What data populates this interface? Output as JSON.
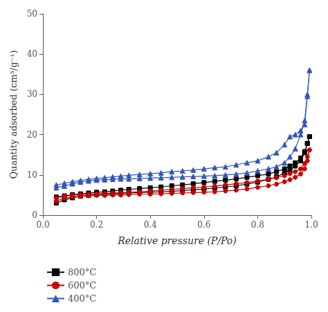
{
  "chart_data": {
    "type": "line",
    "xlabel": "Relative pressure (P/Po)",
    "ylabel": "Quantity adsorbed (cm³/g⁻¹)",
    "xlim": [
      0.0,
      1.0
    ],
    "ylim": [
      0,
      50
    ],
    "xticks": [
      {
        "value": 0.0,
        "label": "0.0"
      },
      0.2,
      0.4,
      0.6,
      0.8,
      {
        "value": 1.0,
        "label": "1.0"
      }
    ],
    "yticks": [
      0,
      10,
      20,
      30,
      40,
      50
    ],
    "grid": false,
    "legend": "lower left",
    "series": [
      {
        "name": "800°C",
        "color": "#000000",
        "marker": "square",
        "adsorption": {
          "x": [
            0.05,
            0.08,
            0.11,
            0.14,
            0.17,
            0.2,
            0.23,
            0.26,
            0.29,
            0.32,
            0.36,
            0.4,
            0.44,
            0.48,
            0.52,
            0.56,
            0.6,
            0.64,
            0.68,
            0.72,
            0.76,
            0.8,
            0.84,
            0.87,
            0.9,
            0.92,
            0.94,
            0.96,
            0.975,
            0.985,
            0.993
          ],
          "values": [
            3.0,
            3.8,
            4.3,
            4.7,
            4.9,
            5.1,
            5.2,
            5.3,
            5.4,
            5.5,
            5.6,
            5.7,
            5.8,
            5.9,
            6.1,
            6.3,
            6.5,
            6.7,
            7.0,
            7.3,
            7.7,
            8.2,
            8.9,
            9.5,
            10.5,
            11.2,
            12.2,
            13.5,
            15.5,
            17.8,
            19.5
          ]
        },
        "desorption": {
          "x": [
            0.993,
            0.985,
            0.975,
            0.96,
            0.94,
            0.92,
            0.9,
            0.87,
            0.84,
            0.8,
            0.76,
            0.72,
            0.68,
            0.64,
            0.6,
            0.56,
            0.52,
            0.48,
            0.44,
            0.4,
            0.36,
            0.32,
            0.29,
            0.26,
            0.23,
            0.2,
            0.17,
            0.14,
            0.11,
            0.08,
            0.05
          ],
          "values": [
            19.5,
            17.8,
            15.8,
            14.2,
            13.0,
            12.2,
            11.5,
            10.8,
            10.2,
            9.8,
            9.4,
            9.0,
            8.7,
            8.4,
            8.1,
            7.8,
            7.5,
            7.3,
            7.0,
            6.8,
            6.6,
            6.4,
            6.2,
            6.0,
            5.8,
            5.7,
            5.5,
            5.3,
            5.1,
            4.8,
            4.5
          ]
        }
      },
      {
        "name": "600°C",
        "color": "#cc0000",
        "marker": "circle",
        "adsorption": {
          "x": [
            0.05,
            0.08,
            0.11,
            0.14,
            0.17,
            0.2,
            0.23,
            0.26,
            0.29,
            0.32,
            0.36,
            0.4,
            0.44,
            0.48,
            0.52,
            0.56,
            0.6,
            0.64,
            0.68,
            0.72,
            0.76,
            0.8,
            0.84,
            0.87,
            0.9,
            0.92,
            0.94,
            0.96,
            0.975,
            0.985,
            0.993
          ],
          "values": [
            3.5,
            4.2,
            4.5,
            4.7,
            4.8,
            4.9,
            4.9,
            5.0,
            5.0,
            5.1,
            5.2,
            5.2,
            5.3,
            5.4,
            5.5,
            5.6,
            5.7,
            5.8,
            6.0,
            6.2,
            6.5,
            6.9,
            7.3,
            7.7,
            8.3,
            8.8,
            9.4,
            10.2,
            11.5,
            13.5,
            16.2
          ]
        },
        "desorption": {
          "x": [
            0.993,
            0.985,
            0.975,
            0.96,
            0.94,
            0.92,
            0.9,
            0.87,
            0.84,
            0.8,
            0.76,
            0.72,
            0.68,
            0.64,
            0.6,
            0.56,
            0.52,
            0.48,
            0.44,
            0.4,
            0.36,
            0.32,
            0.29,
            0.26,
            0.23,
            0.2,
            0.17,
            0.14,
            0.11,
            0.08,
            0.05
          ],
          "values": [
            16.2,
            14.5,
            12.8,
            11.5,
            10.8,
            10.3,
            9.8,
            9.3,
            8.9,
            8.5,
            8.1,
            7.8,
            7.5,
            7.2,
            7.0,
            6.8,
            6.6,
            6.4,
            6.2,
            6.0,
            5.8,
            5.7,
            5.6,
            5.5,
            5.4,
            5.3,
            5.2,
            5.1,
            4.9,
            4.7,
            4.3
          ]
        }
      },
      {
        "name": "400°C",
        "color": "#3355bb",
        "marker": "triangle",
        "adsorption": {
          "x": [
            0.05,
            0.08,
            0.11,
            0.14,
            0.17,
            0.2,
            0.23,
            0.26,
            0.29,
            0.32,
            0.36,
            0.4,
            0.44,
            0.48,
            0.52,
            0.56,
            0.6,
            0.64,
            0.68,
            0.72,
            0.76,
            0.8,
            0.84,
            0.87,
            0.9,
            0.92,
            0.94,
            0.96,
            0.975,
            0.985,
            0.993
          ],
          "values": [
            6.8,
            7.2,
            7.8,
            8.2,
            8.5,
            8.7,
            8.8,
            8.9,
            9.0,
            9.0,
            9.1,
            9.2,
            9.3,
            9.4,
            9.5,
            9.6,
            9.7,
            9.8,
            10.0,
            10.2,
            10.5,
            11.0,
            11.5,
            12.0,
            13.0,
            14.5,
            16.5,
            20.0,
            23.5,
            30.0,
            36.0
          ]
        },
        "desorption": {
          "x": [
            0.993,
            0.985,
            0.975,
            0.96,
            0.94,
            0.92,
            0.9,
            0.87,
            0.84,
            0.8,
            0.76,
            0.72,
            0.68,
            0.64,
            0.6,
            0.56,
            0.52,
            0.48,
            0.44,
            0.4,
            0.36,
            0.32,
            0.29,
            0.26,
            0.23,
            0.2,
            0.17,
            0.14,
            0.11,
            0.08,
            0.05
          ],
          "values": [
            36.0,
            29.5,
            22.5,
            21.0,
            20.0,
            19.5,
            17.5,
            15.5,
            14.5,
            13.5,
            13.0,
            12.5,
            12.0,
            11.8,
            11.5,
            11.2,
            11.0,
            10.8,
            10.5,
            10.3,
            10.1,
            9.9,
            9.7,
            9.5,
            9.3,
            9.1,
            8.9,
            8.6,
            8.3,
            7.9,
            7.5
          ]
        }
      }
    ]
  }
}
